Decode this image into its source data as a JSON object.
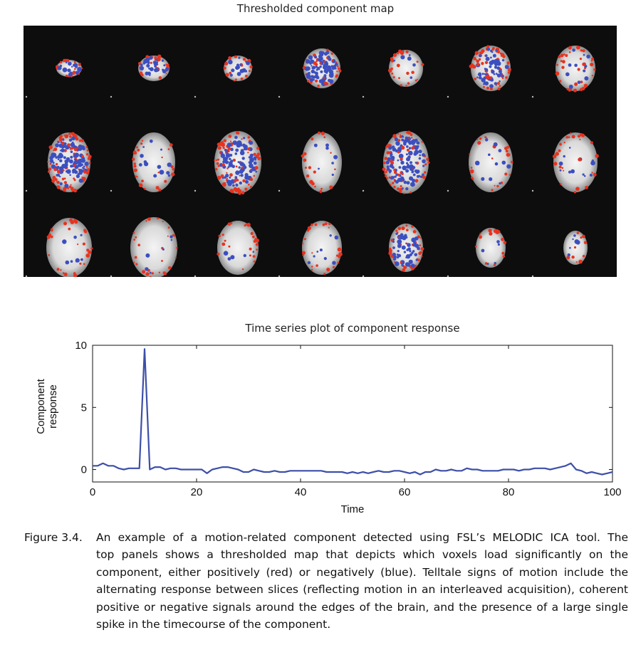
{
  "figure": {
    "map_title": "Thresholded component map",
    "plot_title": "Time series plot of component response",
    "caption_number": "Figure 3.4.",
    "caption_lines": [
      "An example of a motion-related component detected using FSL’s MELODIC ICA tool. The",
      "top panels shows a thresholded map that depicts which voxels load significantly on the",
      "component, either positively (red) or negatively (blue). Telltale signs of motion include the",
      "alternating response between slices (reflecting motion in an interleaved acquisition), coherent",
      "positive or negative signals around the edges of the brain, and the presence of a large single",
      "spike in the timecourse of the component."
    ]
  },
  "colors": {
    "positive": "#e8321e",
    "negative": "#3c4fc0",
    "line": "#3d4fa8",
    "map_background": "#0d0d0d"
  },
  "chart_data": {
    "type": "line",
    "title": "Time series plot of component response",
    "xlabel": "Time",
    "ylabel": "Component response",
    "xlim": [
      0,
      100
    ],
    "ylim": [
      -1,
      10
    ],
    "xticks": [
      0,
      20,
      40,
      60,
      80,
      100
    ],
    "yticks": [
      0,
      5,
      10
    ],
    "grid": false,
    "series": [
      {
        "x": [
          0,
          1,
          2,
          3,
          4,
          5,
          6,
          7,
          8,
          9,
          10,
          11,
          12,
          13,
          14,
          15,
          16,
          17,
          18,
          19,
          20,
          21,
          22,
          23,
          24,
          25,
          26,
          27,
          28,
          29,
          30,
          31,
          32,
          33,
          34,
          35,
          36,
          37,
          38,
          39,
          40,
          41,
          42,
          43,
          44,
          45,
          46,
          47,
          48,
          49,
          50,
          51,
          52,
          53,
          54,
          55,
          56,
          57,
          58,
          59,
          60,
          61,
          62,
          63,
          64,
          65,
          66,
          67,
          68,
          69,
          70,
          71,
          72,
          73,
          74,
          75,
          76,
          77,
          78,
          79,
          80,
          81,
          82,
          83,
          84,
          85,
          86,
          87,
          88,
          89,
          90,
          91,
          92,
          93,
          94,
          95,
          96,
          97,
          98,
          99,
          100
        ],
        "values": [
          0.3,
          0.3,
          0.5,
          0.3,
          0.3,
          0.1,
          0.0,
          0.1,
          0.1,
          0.1,
          9.7,
          0.0,
          0.2,
          0.2,
          0.0,
          0.1,
          0.1,
          0.0,
          0.0,
          0.0,
          0.0,
          0.0,
          -0.3,
          0.0,
          0.1,
          0.2,
          0.2,
          0.1,
          0.0,
          -0.2,
          -0.2,
          0.0,
          -0.1,
          -0.2,
          -0.2,
          -0.1,
          -0.2,
          -0.2,
          -0.1,
          -0.1,
          -0.1,
          -0.1,
          -0.1,
          -0.1,
          -0.1,
          -0.2,
          -0.2,
          -0.2,
          -0.2,
          -0.3,
          -0.2,
          -0.3,
          -0.2,
          -0.3,
          -0.2,
          -0.1,
          -0.2,
          -0.2,
          -0.1,
          -0.1,
          -0.2,
          -0.3,
          -0.2,
          -0.4,
          -0.2,
          -0.2,
          0.0,
          -0.1,
          -0.1,
          0.0,
          -0.1,
          -0.1,
          0.1,
          0.0,
          0.0,
          -0.1,
          -0.1,
          -0.1,
          -0.1,
          0.0,
          0.0,
          0.0,
          -0.1,
          0.0,
          0.0,
          0.1,
          0.1,
          0.1,
          0.0,
          0.1,
          0.2,
          0.3,
          0.5,
          0.0,
          -0.1,
          -0.3,
          -0.2,
          -0.3,
          -0.4,
          -0.3,
          -0.2
        ]
      }
    ]
  }
}
